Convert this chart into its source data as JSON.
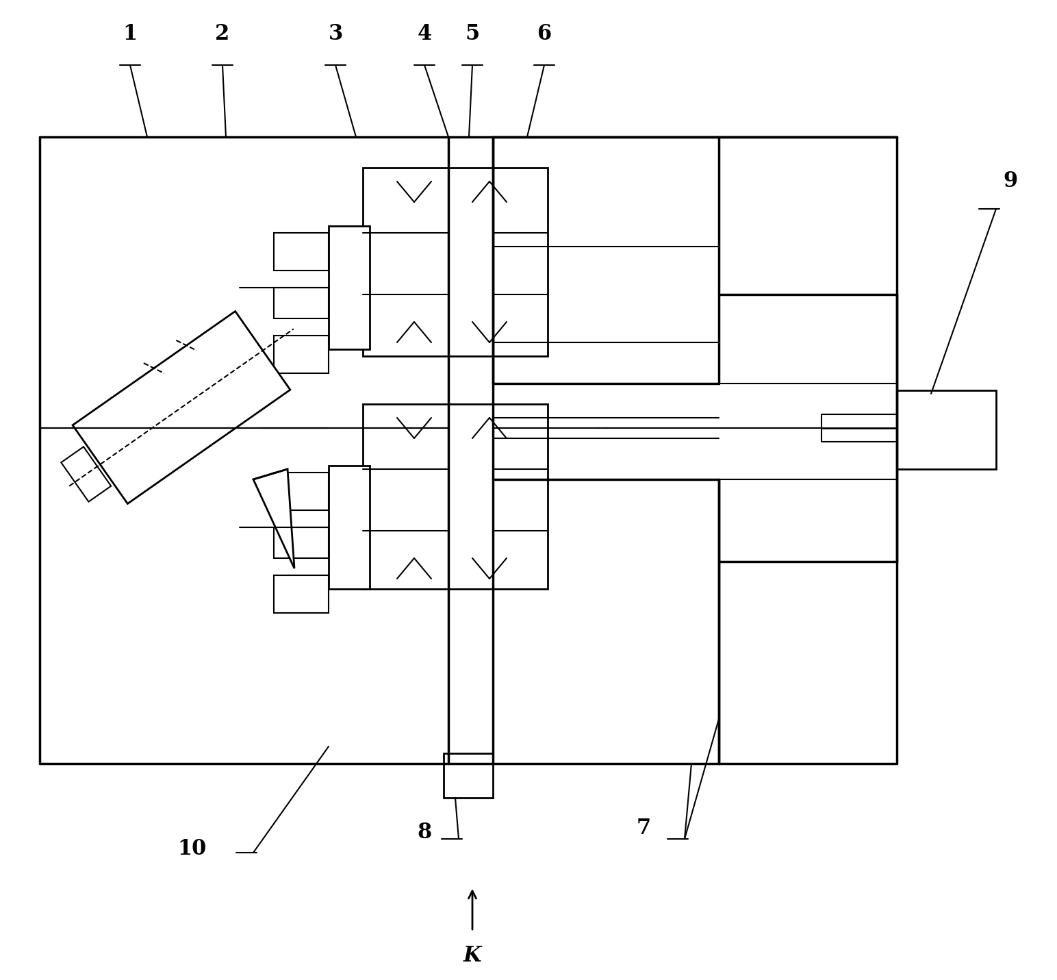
{
  "bg_color": "#ffffff",
  "line_color": "#000000",
  "fig_width": 15.44,
  "fig_height": 14.31,
  "dpi": 100
}
